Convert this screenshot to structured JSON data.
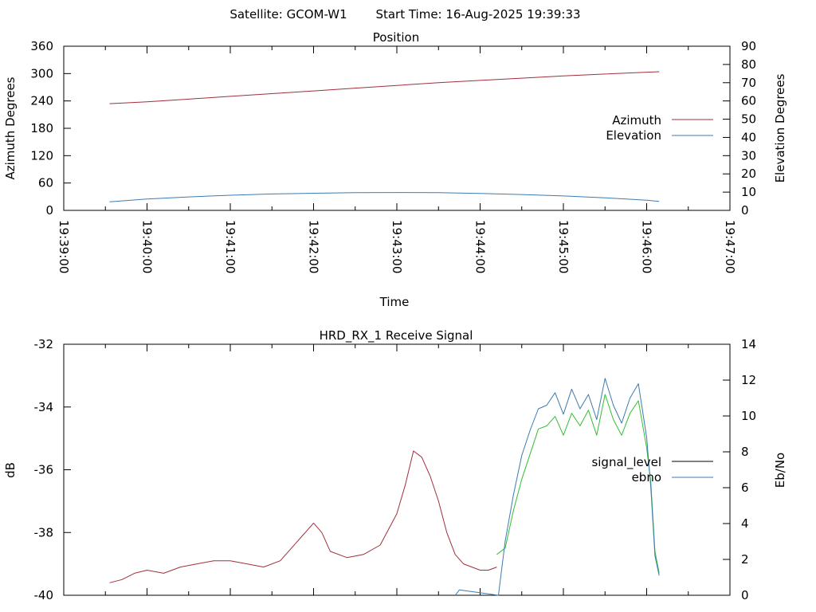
{
  "header": {
    "satellite_label": "Satellite: GCOM-W1",
    "start_time_label": "Start Time: 16-Aug-2025 19:39:33"
  },
  "chart_data": [
    {
      "id": "position",
      "type": "line",
      "title": "Position",
      "xlabel": "Time",
      "ylabel": "Azimuth Degrees",
      "y2label": "Elevation Degrees",
      "x_ticks": [
        "19:39:00",
        "19:40:00",
        "19:41:00",
        "19:42:00",
        "19:43:00",
        "19:44:00",
        "19:45:00",
        "19:46:00",
        "19:47:00"
      ],
      "x_range_min": [
        0,
        8
      ],
      "ylim": [
        0,
        360
      ],
      "y_ticks": [
        0,
        60,
        120,
        180,
        240,
        300,
        360
      ],
      "y2lim": [
        0,
        90
      ],
      "y2_ticks": [
        0,
        10,
        20,
        30,
        40,
        50,
        60,
        70,
        80,
        90
      ],
      "legend_position": "right",
      "series": [
        {
          "name": "Azimuth",
          "axis": "y",
          "color": "#a0303a",
          "x": [
            0.55,
            1.0,
            1.5,
            2.0,
            2.5,
            3.0,
            3.5,
            4.0,
            4.5,
            5.0,
            5.5,
            6.0,
            6.5,
            7.0,
            7.15
          ],
          "y": [
            234,
            238,
            244,
            250,
            256,
            262,
            268,
            274,
            280,
            285,
            290,
            295,
            299,
            303,
            304
          ]
        },
        {
          "name": "Elevation",
          "axis": "y2",
          "color": "#3d7ab0",
          "x": [
            0.55,
            1.0,
            1.5,
            2.0,
            2.5,
            3.0,
            3.5,
            4.0,
            4.5,
            5.0,
            5.5,
            6.0,
            6.5,
            7.0,
            7.15
          ],
          "y": [
            4.7,
            6.2,
            7.4,
            8.3,
            9.0,
            9.4,
            9.7,
            9.8,
            9.7,
            9.3,
            8.7,
            7.9,
            6.9,
            5.6,
            4.9
          ]
        }
      ]
    },
    {
      "id": "signal",
      "type": "line",
      "title": "HRD_RX_1 Receive Signal",
      "xlabel": "",
      "ylabel": "dB",
      "y2label": "Eb/No",
      "x_range_min": [
        0,
        8
      ],
      "ylim": [
        -40,
        -32
      ],
      "y_ticks": [
        -40,
        -38,
        -36,
        -34,
        -32
      ],
      "y2lim": [
        0,
        14
      ],
      "y2_ticks": [
        0,
        2,
        4,
        6,
        8,
        10,
        12,
        14
      ],
      "legend_position": "right",
      "series": [
        {
          "name": "signal_level",
          "axis": "y",
          "color": "#a0303a",
          "x": [
            0.55,
            0.7,
            0.85,
            1.0,
            1.2,
            1.4,
            1.6,
            1.8,
            2.0,
            2.2,
            2.4,
            2.6,
            2.8,
            3.0,
            3.1,
            3.2,
            3.4,
            3.6,
            3.8,
            4.0,
            4.1,
            4.2,
            4.3,
            4.4,
            4.5,
            4.6,
            4.7,
            4.8,
            5.0,
            5.1,
            5.2
          ],
          "y": [
            -39.6,
            -39.5,
            -39.3,
            -39.2,
            -39.3,
            -39.1,
            -39.0,
            -38.9,
            -38.9,
            -39.0,
            -39.1,
            -38.9,
            -38.3,
            -37.7,
            -38.0,
            -38.6,
            -38.8,
            -38.7,
            -38.4,
            -37.4,
            -36.5,
            -35.4,
            -35.6,
            -36.2,
            -37.0,
            -38.0,
            -38.7,
            -39.0,
            -39.2,
            -39.2,
            -39.1
          ]
        },
        {
          "name": "signal_level",
          "axis": "y",
          "color": "#2fbf2f",
          "x": [
            5.2,
            5.3,
            5.4,
            5.5,
            5.6,
            5.7,
            5.8,
            5.9,
            6.0,
            6.1,
            6.2,
            6.3,
            6.4,
            6.5,
            6.6,
            6.7,
            6.8,
            6.9,
            7.0,
            7.05,
            7.1,
            7.15
          ],
          "y": [
            -38.7,
            -38.5,
            -37.3,
            -36.3,
            -35.5,
            -34.7,
            -34.6,
            -34.3,
            -34.9,
            -34.2,
            -34.6,
            -34.1,
            -34.9,
            -33.6,
            -34.4,
            -34.9,
            -34.2,
            -33.8,
            -35.3,
            -36.4,
            -38.6,
            -39.3
          ]
        },
        {
          "name": "ebno",
          "axis": "y2",
          "color": "#3d7ab0",
          "x": [
            4.7,
            4.75,
            5.22,
            5.3,
            5.4,
            5.5,
            5.6,
            5.7,
            5.8,
            5.9,
            6.0,
            6.1,
            6.2,
            6.3,
            6.4,
            6.5,
            6.6,
            6.7,
            6.8,
            6.9,
            7.0,
            7.05,
            7.1,
            7.15
          ],
          "y": [
            0,
            0.3,
            0,
            3.0,
            5.6,
            7.8,
            9.2,
            10.4,
            10.6,
            11.3,
            10.1,
            11.5,
            10.4,
            11.2,
            9.8,
            12.1,
            10.6,
            9.6,
            11.0,
            11.8,
            8.8,
            6.0,
            2.2,
            1.1
          ]
        }
      ]
    }
  ]
}
